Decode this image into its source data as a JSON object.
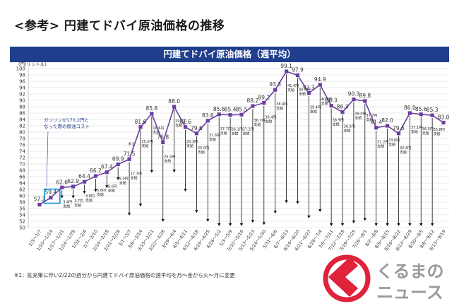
{
  "page_title": "<参考> 円建てドバイ原油価格の推移",
  "footnote": "※1：拡充策に伴い2/22の週分から円建てドバイ原油価格の週平均を月～金から火～月に変更",
  "logo": {
    "line1": "くるまの",
    "line2": "ニュース"
  },
  "colors": {
    "accent": "#6b3fa0",
    "banner": "#1f3e8c",
    "highlight": "#21a0db",
    "logo_red": "#e0223b"
  },
  "chart_data": {
    "type": "line",
    "title": "円建てドバイ原油価格（週平均）",
    "ylabel": "(円/リットル)",
    "xlabel": "",
    "ylim": [
      50,
      100
    ],
    "yticks": [
      50,
      52,
      54,
      56,
      58,
      60,
      62,
      64,
      66,
      68,
      70,
      72,
      74,
      76,
      78,
      80,
      82,
      84,
      86,
      88,
      90,
      92,
      94,
      96,
      98,
      100
    ],
    "grid": true,
    "categories": [
      "1/3～1/7",
      "1/10～1/14",
      "1/17～1/21",
      "1/24～1/28",
      "1/31～2/4",
      "2/7～2/10",
      "2/14～2/18",
      "2/21～2/28",
      "3/1～3/7",
      "3/8～3/14",
      "3/15～3/21",
      "3/22～3/28",
      "3/29～4/4",
      "4/5～4/11",
      "4/12～4/18",
      "4/19～4/25",
      "4/26～5/2",
      "5/3～5/9",
      "5/10～5/16",
      "5/17～5/23",
      "5/24～5/30",
      "5/31～6/6",
      "6/7～6/13",
      "6/14～6/20",
      "6/21～6/27",
      "6/28～7/4",
      "7/5～7/11",
      "7/12～7/18",
      "7/19～7/25",
      "7/26～8/1",
      "8/2～8/8",
      "8/9～8/15",
      "8/16～8/22",
      "8/23～8/29",
      "8/30～9/5",
      "9/6～9/12",
      "9/13～9/19"
    ],
    "values": [
      57.2,
      59.4,
      62.6,
      62.9,
      64.4,
      66.2,
      67.4,
      69.9,
      71.5,
      81.6,
      85.8,
      76.8,
      88.0,
      81.6,
      79.6,
      83.6,
      85.6,
      85.4,
      85.5,
      88.2,
      89.2,
      93.3,
      99.1,
      97.9,
      92.3,
      94.9,
      88.3,
      86.3,
      90.3,
      89.8,
      81.4,
      82.0,
      79.6,
      86.0,
      85.6,
      85.3,
      83.0
    ],
    "subsidies": [
      "3.4円\n支給",
      "3.7円\n支給",
      "3.8円\n支給",
      "5.0円\n支給",
      "5.0円\n支給",
      "5.0円\n支給",
      "17.7円\n支給",
      "25.0円\n支給",
      "18.6円\n支給",
      "25.0円\n支給",
      "20.7円\n支給",
      "20.3円\n支給",
      "25.0円\n支給",
      "31.8円\n支給",
      "37.7円\n支給",
      "36.1円\n支給",
      "37.3円\n支給",
      "36.7円\n支給",
      "38.4円\n支給",
      "38.9円\n支給",
      "41.4円\n支給",
      "40.5円\n支給",
      "39.4円\n支給",
      "40.0円\n支給",
      "38.9円\n支給",
      "36.6円\n支給",
      "39.0円\n支給",
      "37.7円\n支給",
      "31.2円\n支給",
      "33.6円\n支給",
      "32.4円\n支給",
      "37.1円\n支給",
      "36.5円\n支給",
      "35.8円\n支給"
    ],
    "annotations": [
      "ガソリンが170.2円と\nなった際の原油コスト",
      "※1"
    ],
    "highlight_category": "1/10～1/14"
  }
}
